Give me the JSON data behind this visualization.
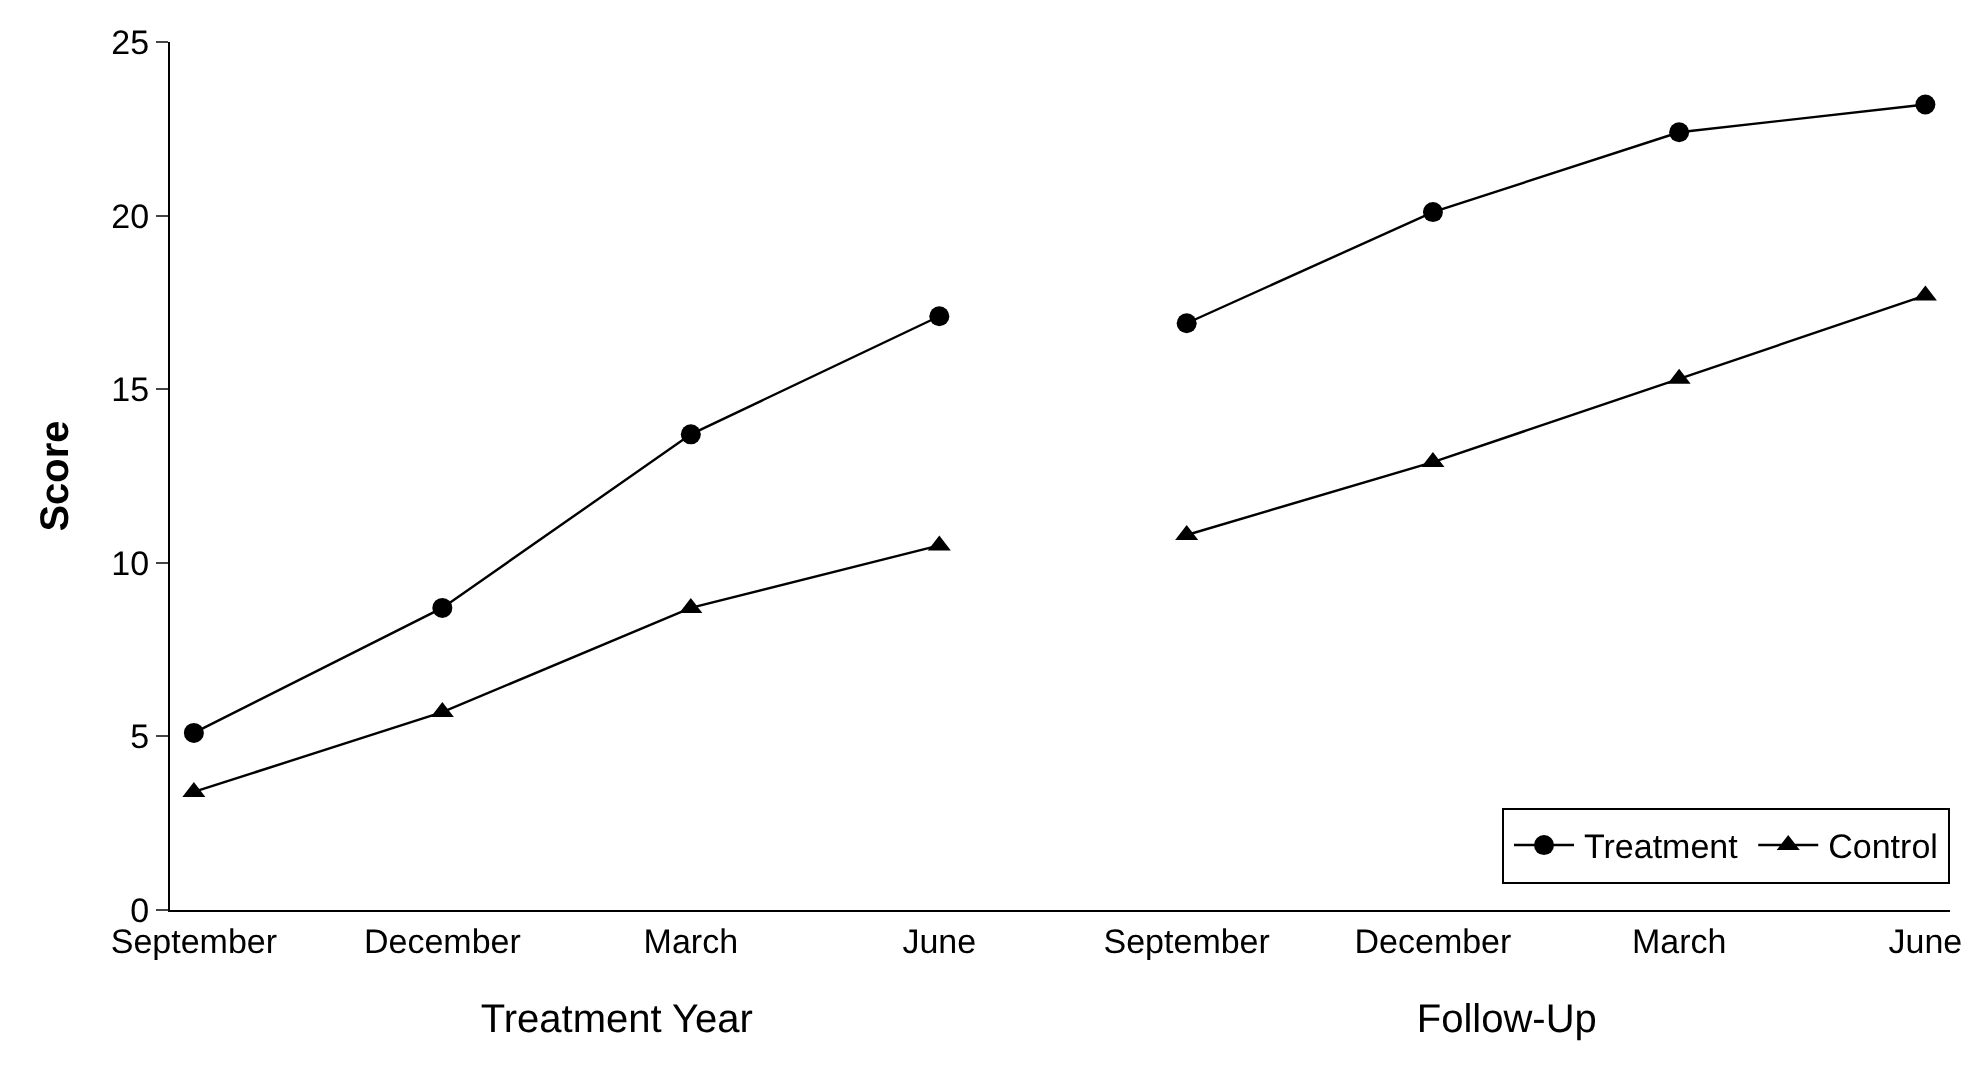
{
  "chart_data": [
    {
      "type": "line",
      "categories": [
        "September",
        "December",
        "March",
        "June"
      ],
      "xlabel": "Treatment Year",
      "ylabel": "Score",
      "ylim": [
        0,
        25
      ],
      "yticks": [
        0,
        5,
        10,
        15,
        20,
        25
      ],
      "legend": false,
      "series": [
        {
          "color": "#000000",
          "marker": "circle",
          "values": [
            5.1,
            8.7,
            13.7,
            17.1
          ]
        },
        {
          "color": "#000000",
          "marker": "triangle",
          "values": [
            3.4,
            5.7,
            8.7,
            10.5
          ]
        }
      ]
    },
    {
      "type": "line",
      "categories": [
        "September",
        "December",
        "March",
        "June"
      ],
      "xlabel": "Follow-Up",
      "ylim": [
        0,
        25
      ],
      "tick_labels": "x",
      "legend": "bottom right",
      "series": [
        {
          "name": "Treatment",
          "color": "#000000",
          "marker": "circle",
          "values": [
            16.9,
            20.1,
            22.4,
            23.2
          ]
        },
        {
          "name": "Control",
          "color": "#000000",
          "marker": "triangle",
          "values": [
            10.8,
            12.9,
            15.3,
            17.7
          ]
        }
      ]
    }
  ]
}
